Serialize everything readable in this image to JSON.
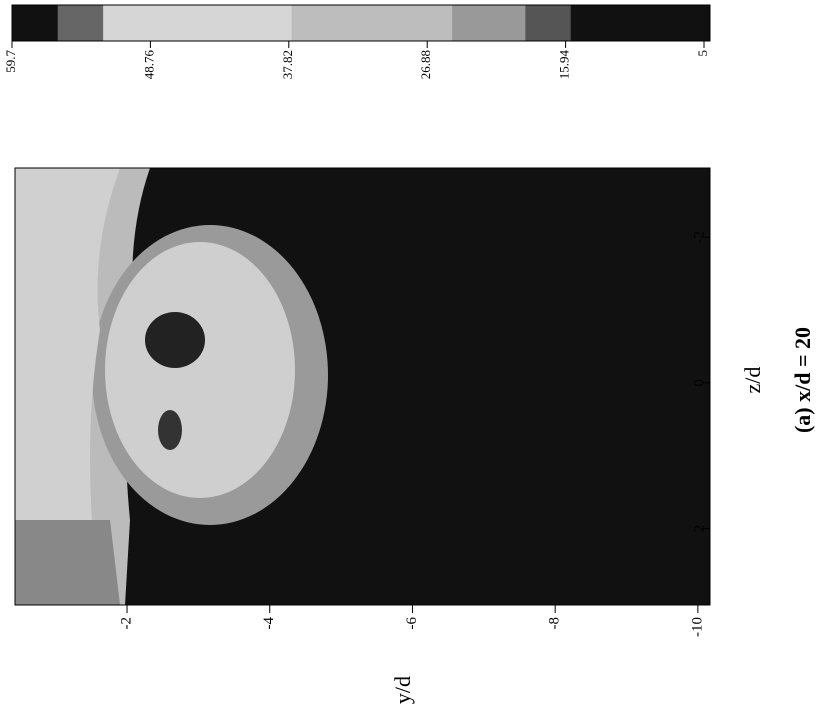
{
  "chart_data": {
    "type": "contour",
    "caption": "(a) x/d = 20",
    "xlabel": "z/d",
    "ylabel": "y/d",
    "xlim": [
      -2.95,
      3.05
    ],
    "xticks": [
      2,
      0,
      -2
    ],
    "ylim": [
      -0.43,
      -10.17
    ],
    "yticks": [
      -2,
      -4,
      -6,
      -8,
      -10
    ],
    "clim": [
      59.7,
      5
    ],
    "cticks": [
      59.7,
      48.76,
      37.82,
      26.88,
      15.94,
      5
    ]
  }
}
